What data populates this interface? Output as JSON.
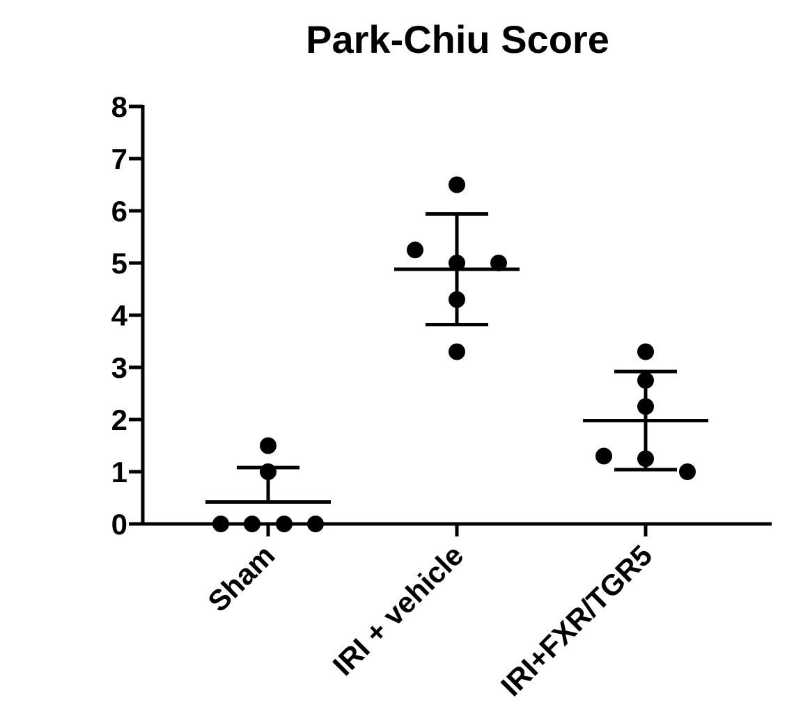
{
  "chart_data": {
    "type": "scatter",
    "title": "Park-Chiu Score",
    "xlabel": "",
    "ylabel": "",
    "ylim": [
      0,
      8
    ],
    "yticks": [
      "0",
      "1",
      "2",
      "3",
      "4",
      "5",
      "6",
      "7",
      "8"
    ],
    "grid": false,
    "categories": [
      "Sham",
      "IRI + vehicle",
      "IRI+FXR/TGR5"
    ],
    "groups": [
      {
        "label": "Sham",
        "points": [
          0,
          0,
          0,
          0,
          1,
          1.5
        ],
        "mean": 0.42,
        "sd_upper": 1.08
      },
      {
        "label": "IRI + vehicle",
        "points": [
          6.5,
          5.25,
          5,
          5,
          4.3,
          3.3
        ],
        "mean": 4.88,
        "sd_lower": 3.82,
        "sd_upper": 5.94
      },
      {
        "label": "IRI+FXR/TGR5",
        "points": [
          3.3,
          2.75,
          2.25,
          1.3,
          1.25,
          1.0
        ],
        "mean": 1.98,
        "sd_lower": 1.04,
        "sd_upper": 2.92
      }
    ]
  }
}
